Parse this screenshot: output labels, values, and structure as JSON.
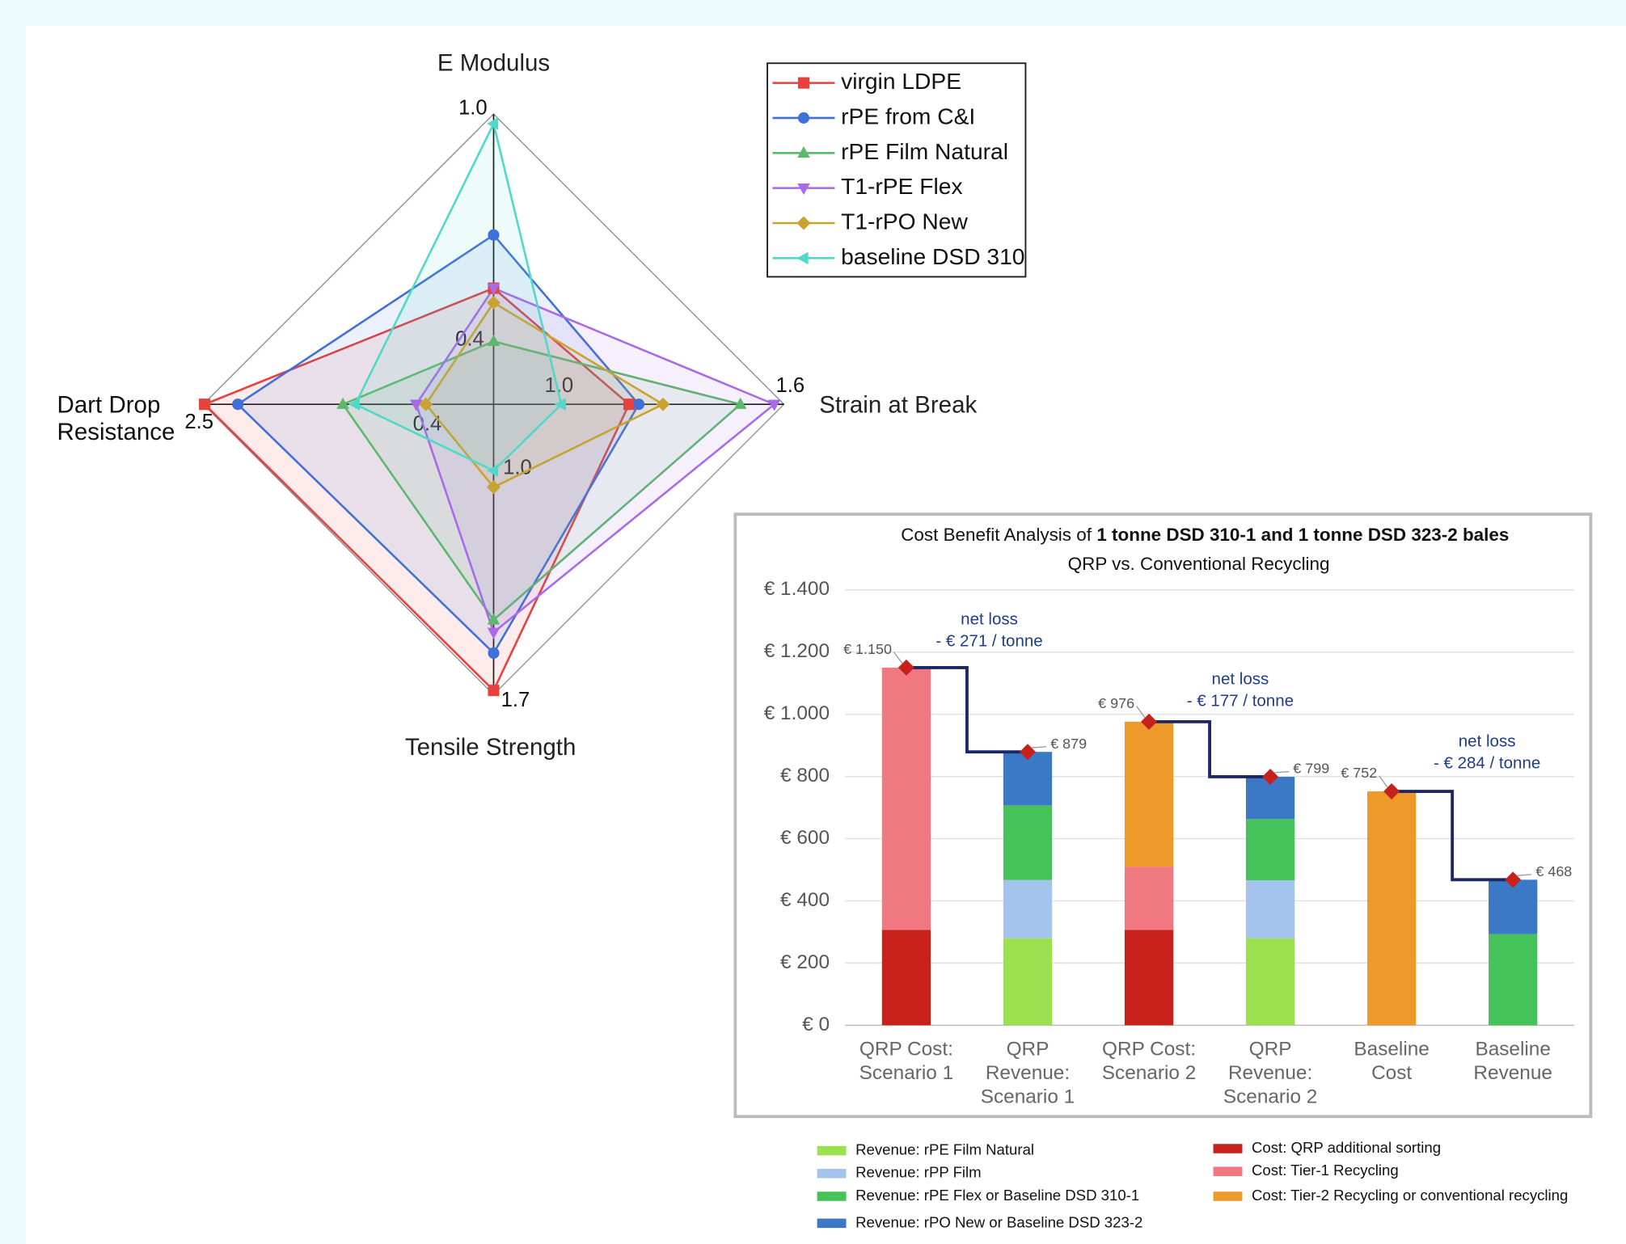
{
  "chart_data": [
    {
      "type": "radar",
      "axes": [
        {
          "label": "E Modulus",
          "ticks": [
            0.4,
            {
              "value": 1,
              "label": "1.0"
            }
          ]
        },
        {
          "label": "Strain at Break",
          "ticks": [
            {
              "value": 1,
              "label": "1.0"
            },
            1.6
          ]
        },
        {
          "label": "Tensile Strength",
          "ticks": [
            {
              "value": 1,
              "label": "1.0"
            },
            1.7
          ]
        },
        {
          "label": [
            "Dart Drop",
            "Resistance"
          ],
          "ticks": [
            0.4,
            2.5
          ]
        }
      ],
      "series": [
        {
          "name": "virgin LDPE",
          "color": "#e8413c",
          "marker": "square",
          "values": [
            0.64,
            1.28,
            1.69,
            2.49
          ]
        },
        {
          "name": "rPE from C&I",
          "color": "#3f6fd8",
          "marker": "circle",
          "values": [
            0.75,
            1.3,
            1.6,
            2.25
          ]
        },
        {
          "name": "rPE Film Natural",
          "color": "#5cb86a",
          "marker": "triangle-up",
          "values": [
            0.53,
            1.51,
            1.52,
            1.49
          ]
        },
        {
          "name": "T1-rPE Flex",
          "color": "#a86ae8",
          "marker": "triangle-down",
          "values": [
            0.64,
            1.58,
            1.55,
            0.96
          ]
        },
        {
          "name": "T1-rPO New",
          "color": "#c9a230",
          "marker": "diamond",
          "values": [
            0.61,
            1.35,
            1.2,
            0.89
          ]
        },
        {
          "name": "baseline DSD 310",
          "color": "#50d8c8",
          "marker": "triangle-left",
          "values": [
            0.98,
            1.14,
            1.16,
            1.4
          ]
        }
      ],
      "legend": "upper right"
    },
    {
      "type": "stacked-bar",
      "title": [
        "Cost Benefit Analysis of",
        "1 tonne DSD 310-1 and 1 tonne DSD 323-2 bales"
      ],
      "subtitle": "QRP vs. Conventional Recycling",
      "categories": [
        [
          "QRP Cost:",
          "Scenario 1"
        ],
        [
          "QRP",
          "Revenue:",
          "Scenario 1"
        ],
        [
          "QRP Cost:",
          "Scenario 2"
        ],
        [
          "QRP",
          "Revenue:",
          "Scenario 2"
        ],
        [
          "Baseline",
          "Cost"
        ],
        [
          "Baseline",
          "Revenue"
        ]
      ],
      "ylim": [
        0,
        1400
      ],
      "yticks": [
        {
          "value": 0,
          "label": "€ 0"
        },
        {
          "value": 200,
          "label": "€ 200"
        },
        {
          "value": 400,
          "label": "€ 400"
        },
        {
          "value": 600,
          "label": "€ 600"
        },
        {
          "value": 800,
          "label": "€ 800"
        },
        {
          "value": 1000,
          "label": "€ 1.000"
        },
        {
          "value": 1200,
          "label": "€ 1.200"
        },
        {
          "value": 1400,
          "label": "€ 1.400"
        }
      ],
      "grid": true,
      "series": [
        {
          "name": "Revenue: rPE Film Natural",
          "color": "#9be04f",
          "values": [
            null,
            280,
            null,
            280,
            null,
            null
          ]
        },
        {
          "name": "Revenue: rPP Film",
          "color": "#a4c4ee",
          "values": [
            null,
            187,
            null,
            186,
            null,
            null
          ]
        },
        {
          "name": "Revenue: rPE Flex or Baseline DSD 310-1",
          "color": "#45c35a",
          "values": [
            null,
            240,
            null,
            197,
            null,
            293
          ]
        },
        {
          "name": "Revenue: rPO New or Baseline DSD 323-2",
          "color": "#3b78c6",
          "values": [
            null,
            172,
            null,
            136,
            null,
            175
          ]
        },
        {
          "name": "Cost: QRP additional sorting",
          "color": "#c8201a",
          "values": [
            307,
            null,
            307,
            null,
            null,
            null
          ]
        },
        {
          "name": "Cost: Tier-1 Recycling",
          "color": "#f07880",
          "values": [
            843,
            null,
            203,
            null,
            null,
            null
          ]
        },
        {
          "name": "Cost: Tier-2 Recycling or conventional recycling",
          "color": "#ee9a2b",
          "values": [
            null,
            null,
            466,
            null,
            752,
            null
          ]
        }
      ],
      "totals": {
        "color": "#c8201a",
        "values": [
          1150,
          879,
          976,
          799,
          752,
          468
        ],
        "value_labels": [
          "€ 1.150",
          "€ 879",
          "€ 976",
          "€ 799",
          "€ 752",
          "€ 468"
        ]
      },
      "annotations": [
        [
          "net loss",
          "- € 271 / tonne"
        ],
        [
          "net loss",
          "- € 177 / tonne"
        ],
        [
          "net loss",
          "- € 284 / tonne"
        ]
      ],
      "legend": "bottom"
    }
  ]
}
